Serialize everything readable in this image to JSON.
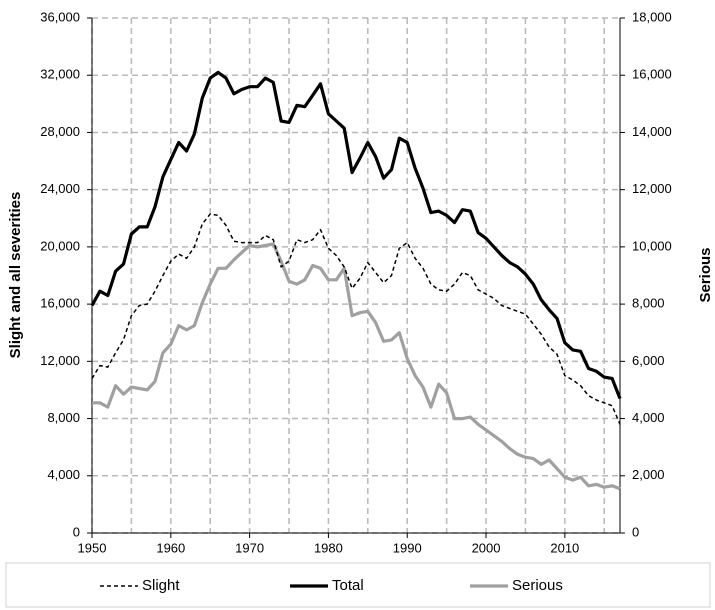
{
  "chart_data": {
    "type": "line",
    "ylabel": "Slight and all severities",
    "y2label": "Serious",
    "x": [
      1950,
      1951,
      1952,
      1953,
      1954,
      1955,
      1956,
      1957,
      1958,
      1959,
      1960,
      1961,
      1962,
      1963,
      1964,
      1965,
      1966,
      1967,
      1968,
      1969,
      1970,
      1971,
      1972,
      1973,
      1974,
      1975,
      1976,
      1977,
      1978,
      1979,
      1980,
      1981,
      1982,
      1983,
      1984,
      1985,
      1986,
      1987,
      1988,
      1989,
      1990,
      1991,
      1992,
      1993,
      1994,
      1995,
      1996,
      1997,
      1998,
      1999,
      2000,
      2001,
      2002,
      2003,
      2004,
      2005,
      2006,
      2007,
      2008,
      2009,
      2010,
      2011,
      2012,
      2013,
      2014,
      2015,
      2016,
      2017
    ],
    "series": [
      {
        "name": "Slight",
        "color": "#000000",
        "dashed": true,
        "axis": "y",
        "values": [
          10800,
          11700,
          11600,
          12600,
          13500,
          15200,
          15900,
          16000,
          16900,
          18000,
          19000,
          19500,
          19200,
          20000,
          21600,
          22300,
          22200,
          21500,
          20400,
          20300,
          20300,
          20300,
          20800,
          20500,
          18600,
          19000,
          20500,
          20300,
          20500,
          21200,
          19900,
          19400,
          18600,
          17100,
          17800,
          18900,
          18200,
          17500,
          18000,
          19900,
          20300,
          19200,
          18500,
          17400,
          17000,
          16900,
          17400,
          18200,
          18000,
          17000,
          16700,
          16400,
          15900,
          15700,
          15500,
          15300,
          14600,
          13900,
          13000,
          12500,
          11000,
          10700,
          10300,
          9600,
          9300,
          9100,
          8900,
          7600
        ]
      },
      {
        "name": "Total",
        "color": "#000000",
        "dashed": false,
        "axis": "y",
        "values": [
          15900,
          16900,
          16600,
          18300,
          18800,
          20900,
          21400,
          21400,
          22800,
          24900,
          26100,
          27300,
          26700,
          27900,
          30400,
          31800,
          32200,
          31800,
          30700,
          31000,
          31200,
          31200,
          31800,
          31500,
          28800,
          28700,
          29900,
          29800,
          30600,
          31400,
          29300,
          28800,
          28300,
          25200,
          26200,
          27300,
          26300,
          24800,
          25400,
          27600,
          27300,
          25500,
          24100,
          22400,
          22500,
          22200,
          21700,
          22600,
          22500,
          21000,
          20600,
          20000,
          19400,
          18900,
          18600,
          18100,
          17400,
          16300,
          15600,
          15000,
          13300,
          12800,
          12700,
          11500,
          11300,
          10900,
          10800,
          9400
        ]
      },
      {
        "name": "Serious",
        "color": "#a0a0a0",
        "dashed": false,
        "axis": "y2",
        "values": [
          4550,
          4550,
          4400,
          5150,
          4850,
          5100,
          5050,
          5000,
          5300,
          6300,
          6600,
          7250,
          7100,
          7250,
          8050,
          8700,
          9250,
          9250,
          9550,
          9800,
          10050,
          10000,
          10050,
          10100,
          9500,
          8800,
          8700,
          8850,
          9350,
          9250,
          8850,
          8850,
          9250,
          7600,
          7700,
          7750,
          7350,
          6700,
          6750,
          7000,
          6100,
          5500,
          5100,
          4400,
          5200,
          4900,
          4000,
          4000,
          4050,
          3800,
          3600,
          3400,
          3200,
          2950,
          2750,
          2650,
          2600,
          2400,
          2550,
          2250,
          1950,
          1850,
          1950,
          1650,
          1700,
          1600,
          1650,
          1550
        ]
      }
    ],
    "xlim": [
      1950,
      2017
    ],
    "xticks": [
      1950,
      1960,
      1970,
      1980,
      1990,
      2000,
      2010
    ],
    "xminorticks": [
      1955,
      1965,
      1975,
      1985,
      1995,
      2005,
      2015
    ],
    "ylim": [
      0,
      36000
    ],
    "yticks": [
      0,
      {
        "value": 4000,
        "label": "4,000"
      },
      {
        "value": 8000,
        "label": "8,000"
      },
      {
        "value": 12000,
        "label": "12,000"
      },
      {
        "value": 16000,
        "label": "16,000"
      },
      {
        "value": 20000,
        "label": "20,000"
      },
      {
        "value": 24000,
        "label": "24,000"
      },
      {
        "value": 28000,
        "label": "28,000"
      },
      {
        "value": 32000,
        "label": "32,000"
      },
      {
        "value": 36000,
        "label": "36,000"
      }
    ],
    "y2lim": [
      0,
      18000
    ],
    "y2ticks": [
      0,
      {
        "value": 2000,
        "label": "2,000"
      },
      {
        "value": 4000,
        "label": "4,000"
      },
      {
        "value": 6000,
        "label": "6,000"
      },
      {
        "value": 8000,
        "label": "8,000"
      },
      {
        "value": 10000,
        "label": "10,000"
      },
      {
        "value": 12000,
        "label": "12,000"
      },
      {
        "value": 14000,
        "label": "14,000"
      },
      {
        "value": 16000,
        "label": "16,000"
      },
      {
        "value": 18000,
        "label": "18,000"
      }
    ],
    "grid": true,
    "legend": "bottom"
  }
}
